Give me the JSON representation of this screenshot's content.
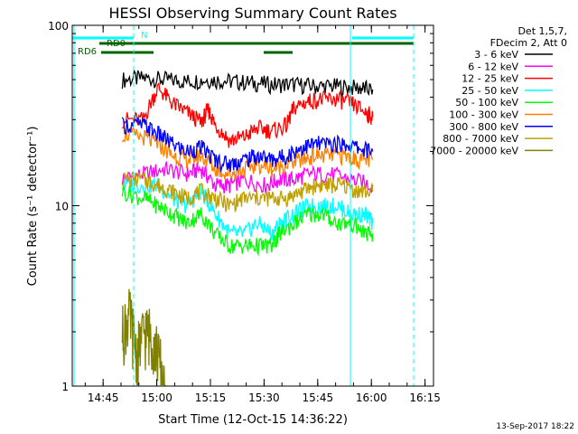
{
  "chart_data": {
    "type": "line",
    "title": "HESSI Observing Summary Count Rates",
    "xlabel": "Start Time (12-Oct-15 14:36:22)",
    "ylabel": "Count Rate (s⁻¹ detector⁻¹)",
    "y_scale": "log",
    "ylim": [
      1,
      100
    ],
    "xlim_minutes_after_14_36_22": [
      0,
      101
    ],
    "x_ticks": [
      {
        "label": "14:45",
        "minutes": 8.63
      },
      {
        "label": "15:00",
        "minutes": 23.63
      },
      {
        "label": "15:15",
        "minutes": 38.63
      },
      {
        "label": "15:30",
        "minutes": 53.63
      },
      {
        "label": "15:45",
        "minutes": 68.63
      },
      {
        "label": "16:00",
        "minutes": 83.63
      },
      {
        "label": "16:15",
        "minutes": 98.63
      }
    ],
    "y_ticks": [
      {
        "label": "1",
        "value": 1
      },
      {
        "label": "10",
        "value": 10
      },
      {
        "label": "100",
        "value": 100
      }
    ],
    "legend_title": [
      "Det 1,5,7,",
      "FDecim 2, Att 0"
    ],
    "legend_placement": "right",
    "series": [
      {
        "name": "3 - 6 keV",
        "color": "#000000",
        "values": [
          [
            14,
            50
          ],
          [
            20,
            51
          ],
          [
            26,
            50
          ],
          [
            32,
            49
          ],
          [
            38,
            50
          ],
          [
            44,
            49
          ],
          [
            50,
            48
          ],
          [
            56,
            47
          ],
          [
            62,
            47
          ],
          [
            68,
            46
          ],
          [
            74,
            46
          ],
          [
            80,
            45
          ],
          [
            84,
            44
          ]
        ]
      },
      {
        "name": "6 - 12 keV",
        "color": "#ff00ff",
        "values": [
          [
            14,
            14
          ],
          [
            20,
            15
          ],
          [
            26,
            16
          ],
          [
            32,
            15
          ],
          [
            36,
            16
          ],
          [
            40,
            13
          ],
          [
            44,
            13
          ],
          [
            48,
            14
          ],
          [
            54,
            13
          ],
          [
            58,
            14
          ],
          [
            62,
            14
          ],
          [
            66,
            15
          ],
          [
            72,
            15
          ],
          [
            78,
            14
          ],
          [
            84,
            13
          ]
        ]
      },
      {
        "name": "12 - 25 keV",
        "color": "#ff0000",
        "values": [
          [
            14,
            30
          ],
          [
            20,
            30
          ],
          [
            24,
            45
          ],
          [
            28,
            37
          ],
          [
            32,
            33
          ],
          [
            36,
            29
          ],
          [
            38,
            34
          ],
          [
            40,
            28
          ],
          [
            44,
            23
          ],
          [
            48,
            24
          ],
          [
            52,
            27
          ],
          [
            56,
            26
          ],
          [
            60,
            28
          ],
          [
            62,
            35
          ],
          [
            66,
            38
          ],
          [
            70,
            39
          ],
          [
            74,
            39
          ],
          [
            78,
            37
          ],
          [
            82,
            33
          ],
          [
            84,
            31
          ]
        ]
      },
      {
        "name": "25 - 50 keV",
        "color": "#00ffff",
        "values": [
          [
            14,
            13
          ],
          [
            20,
            13
          ],
          [
            24,
            13
          ],
          [
            28,
            11
          ],
          [
            32,
            10
          ],
          [
            36,
            12
          ],
          [
            40,
            9
          ],
          [
            44,
            7
          ],
          [
            48,
            7
          ],
          [
            52,
            8
          ],
          [
            56,
            7
          ],
          [
            58,
            8
          ],
          [
            62,
            9
          ],
          [
            66,
            10
          ],
          [
            70,
            10
          ],
          [
            74,
            10
          ],
          [
            78,
            9
          ],
          [
            82,
            9
          ],
          [
            84,
            8
          ]
        ]
      },
      {
        "name": "50 - 100 keV",
        "color": "#00ff00",
        "values": [
          [
            14,
            12
          ],
          [
            20,
            11
          ],
          [
            24,
            10
          ],
          [
            28,
            9
          ],
          [
            32,
            8
          ],
          [
            36,
            9
          ],
          [
            40,
            7
          ],
          [
            44,
            6
          ],
          [
            48,
            6
          ],
          [
            52,
            6
          ],
          [
            56,
            6
          ],
          [
            58,
            7
          ],
          [
            62,
            8
          ],
          [
            66,
            9
          ],
          [
            70,
            9
          ],
          [
            74,
            8
          ],
          [
            78,
            8
          ],
          [
            82,
            7
          ],
          [
            84,
            7
          ]
        ]
      },
      {
        "name": "100 - 300 keV",
        "color": "#ff7f00",
        "values": [
          [
            14,
            25
          ],
          [
            20,
            24
          ],
          [
            24,
            22
          ],
          [
            28,
            19
          ],
          [
            32,
            18
          ],
          [
            36,
            19
          ],
          [
            40,
            16
          ],
          [
            44,
            15
          ],
          [
            48,
            16
          ],
          [
            52,
            17
          ],
          [
            56,
            16
          ],
          [
            60,
            17
          ],
          [
            64,
            18
          ],
          [
            68,
            19
          ],
          [
            72,
            19
          ],
          [
            76,
            19
          ],
          [
            80,
            18
          ],
          [
            84,
            18
          ]
        ]
      },
      {
        "name": "300 - 800 keV",
        "color": "#0000ff",
        "values": [
          [
            14,
            28
          ],
          [
            20,
            28
          ],
          [
            24,
            25
          ],
          [
            28,
            22
          ],
          [
            32,
            20
          ],
          [
            36,
            21
          ],
          [
            40,
            18
          ],
          [
            44,
            17
          ],
          [
            48,
            18
          ],
          [
            52,
            19
          ],
          [
            56,
            18
          ],
          [
            60,
            19
          ],
          [
            64,
            21
          ],
          [
            68,
            22
          ],
          [
            72,
            22
          ],
          [
            76,
            22
          ],
          [
            80,
            21
          ],
          [
            84,
            20
          ]
        ]
      },
      {
        "name": "800 - 7000 keV",
        "color": "#c0a000",
        "values": [
          [
            14,
            14
          ],
          [
            20,
            14
          ],
          [
            24,
            13
          ],
          [
            28,
            12
          ],
          [
            32,
            11
          ],
          [
            36,
            12
          ],
          [
            40,
            11
          ],
          [
            44,
            10
          ],
          [
            48,
            11
          ],
          [
            52,
            11
          ],
          [
            56,
            11
          ],
          [
            60,
            11
          ],
          [
            64,
            12
          ],
          [
            68,
            13
          ],
          [
            72,
            13
          ],
          [
            76,
            13
          ],
          [
            80,
            12
          ],
          [
            84,
            12
          ]
        ]
      },
      {
        "name": "7000 - 20000 keV",
        "color": "#808000",
        "values": [
          [
            14,
            2
          ],
          [
            16,
            2.5
          ],
          [
            18,
            1.5
          ],
          [
            20,
            2
          ],
          [
            22,
            2
          ],
          [
            24,
            1.5
          ],
          [
            26,
            1
          ]
        ]
      }
    ],
    "legend_entries": [
      {
        "label": "3 - 6 keV",
        "color": "#000000"
      },
      {
        "label": "6 - 12 keV",
        "color": "#ff00ff"
      },
      {
        "label": "12 - 25 keV",
        "color": "#ff0000"
      },
      {
        "label": "25 - 50 keV",
        "color": "#00ffff"
      },
      {
        "label": "50 - 100 keV",
        "color": "#00ff00"
      },
      {
        "label": "100 - 300 keV",
        "color": "#ff7f00"
      },
      {
        "label": "300 - 800 keV",
        "color": "#0000ff"
      },
      {
        "label": "800 - 7000 keV",
        "color": "#c0a000"
      },
      {
        "label": "7000 - 20000 keV",
        "color": "#808000"
      }
    ],
    "flag_bars": [
      {
        "label": "RD0",
        "color": "#006400"
      },
      {
        "label": "RD6",
        "color": "#006400"
      },
      {
        "label": "N",
        "color": "#00ffff"
      }
    ],
    "annotation": "13-Sep-2017 18:22"
  }
}
